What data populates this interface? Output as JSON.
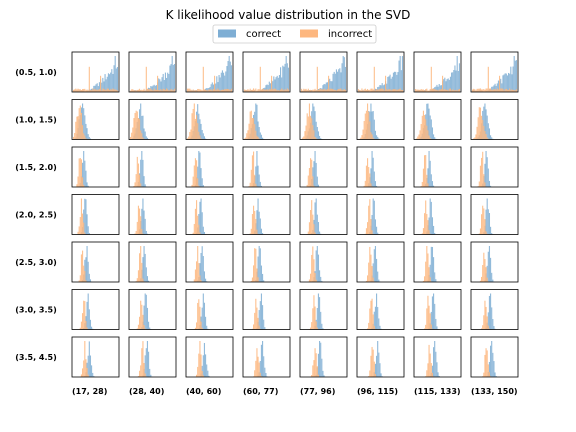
{
  "chart_data": {
    "type": "bar",
    "title": "K likelihood value distribution in the SVD",
    "legend": {
      "placement": "top-center",
      "entries": [
        "correct",
        "incorrect"
      ]
    },
    "colors": {
      "correct": "#7eaed4",
      "incorrect": "#fdb77f"
    },
    "row_labels": [
      "(0.5, 1.0)",
      "(1.0, 1.5)",
      "(1.5, 2.0)",
      "(2.0, 2.5)",
      "(2.5, 3.0)",
      "(3.0, 3.5)",
      "(3.5, 4.5)"
    ],
    "col_labels": [
      "(17, 28)",
      "(28, 40)",
      "(40, 60)",
      "(60, 77)",
      "(77, 96)",
      "(96, 115)",
      "(115, 133)",
      "(133, 150)"
    ],
    "grid": false,
    "axes_ticks": false,
    "panel_series_note": "Each panel overlays a 'correct' and an 'incorrect' histogram; correct mass shifts right as rows increase and columns increase."
  }
}
